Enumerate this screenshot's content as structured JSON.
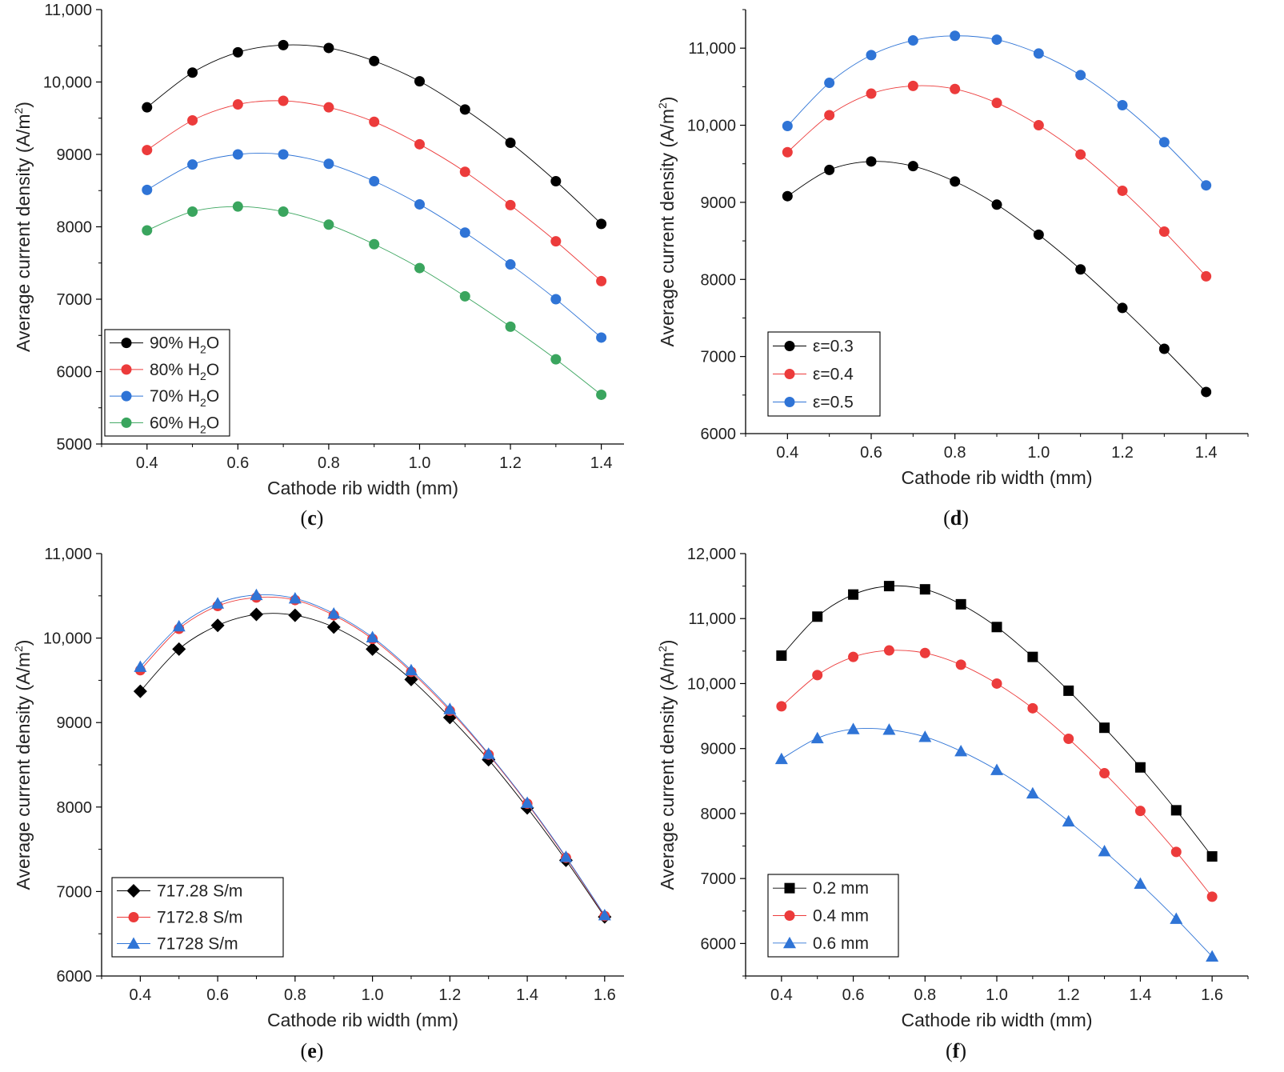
{
  "chart_data": [
    {
      "panel": "c",
      "type": "line",
      "xlabel": "Cathode rib width (mm)",
      "ylabel": "Average current density (A/m2)",
      "ylim": [
        5000,
        11000
      ],
      "yticks": [
        5000,
        6000,
        7000,
        8000,
        9000,
        10000,
        11000
      ],
      "ytick_labels": [
        "5000",
        "6000",
        "7000",
        "8000",
        "9000",
        "10,000",
        "11,000"
      ],
      "xlim": [
        0.3,
        1.45
      ],
      "xticks": [
        0.4,
        0.6,
        0.8,
        1.0,
        1.2,
        1.4
      ],
      "xtick_labels": [
        "0.4",
        "0.6",
        "0.8",
        "1.0",
        "1.2",
        "1.4"
      ],
      "x": [
        0.4,
        0.5,
        0.6,
        0.7,
        0.8,
        0.9,
        1.0,
        1.1,
        1.2,
        1.3,
        1.4
      ],
      "legend_position": "bottom-left",
      "series": [
        {
          "name": "90% H2O",
          "label_main": "90% H",
          "label_sub": "2",
          "label_tail": "O",
          "color": "#000000",
          "marker": "circle",
          "values": [
            9650,
            10130,
            10410,
            10510,
            10470,
            10290,
            10010,
            9620,
            9160,
            8630,
            8040
          ]
        },
        {
          "name": "80% H2O",
          "label_main": "80% H",
          "label_sub": "2",
          "label_tail": "O",
          "color": "#ec3b3b",
          "marker": "circle",
          "values": [
            9060,
            9470,
            9690,
            9740,
            9650,
            9450,
            9140,
            8760,
            8300,
            7800,
            7250
          ]
        },
        {
          "name": "70% H2O",
          "label_main": "70% H",
          "label_sub": "2",
          "label_tail": "O",
          "color": "#2f74d6",
          "marker": "circle",
          "values": [
            8510,
            8860,
            9000,
            9000,
            8870,
            8630,
            8310,
            7920,
            7480,
            7000,
            6470
          ]
        },
        {
          "name": "60% H2O",
          "label_main": "60% H",
          "label_sub": "2",
          "label_tail": "O",
          "color": "#3aa55e",
          "marker": "circle",
          "values": [
            7950,
            8210,
            8280,
            8210,
            8030,
            7760,
            7430,
            7040,
            6620,
            6170,
            5680
          ]
        }
      ]
    },
    {
      "panel": "d",
      "type": "line",
      "xlabel": "Cathode rib width (mm)",
      "ylabel": "Average current density (A/m2)",
      "ylim": [
        6000,
        11500
      ],
      "yticks": [
        6000,
        7000,
        8000,
        9000,
        10000,
        11000
      ],
      "ytick_labels": [
        "6000",
        "7000",
        "8000",
        "9000",
        "10,000",
        "11,000"
      ],
      "xlim": [
        0.3,
        1.5
      ],
      "xticks": [
        0.4,
        0.6,
        0.8,
        1.0,
        1.2,
        1.4
      ],
      "xtick_labels": [
        "0.4",
        "0.6",
        "0.8",
        "1.0",
        "1.2",
        "1.4"
      ],
      "x": [
        0.4,
        0.5,
        0.6,
        0.7,
        0.8,
        0.9,
        1.0,
        1.1,
        1.2,
        1.3,
        1.4
      ],
      "legend_position": "bottom-left",
      "series": [
        {
          "name": "ε=0.3",
          "label_main": "ε=0.3",
          "label_sub": "",
          "label_tail": "",
          "color": "#000000",
          "marker": "circle",
          "values": [
            9080,
            9420,
            9530,
            9470,
            9270,
            8970,
            8580,
            8130,
            7630,
            7100,
            6540
          ]
        },
        {
          "name": "ε=0.4",
          "label_main": "ε=0.4",
          "label_sub": "",
          "label_tail": "",
          "color": "#ec3b3b",
          "marker": "circle",
          "values": [
            9650,
            10130,
            10410,
            10510,
            10470,
            10290,
            10000,
            9620,
            9150,
            8620,
            8040
          ]
        },
        {
          "name": "ε=0.5",
          "label_main": "ε=0.5",
          "label_sub": "",
          "label_tail": "",
          "color": "#2f74d6",
          "marker": "circle",
          "values": [
            9990,
            10550,
            10910,
            11100,
            11160,
            11110,
            10930,
            10650,
            10260,
            9780,
            9220
          ]
        }
      ]
    },
    {
      "panel": "e",
      "type": "line",
      "xlabel": "Cathode rib width (mm)",
      "ylabel": "Average current density (A/m2)",
      "ylim": [
        6000,
        11000
      ],
      "yticks": [
        6000,
        7000,
        8000,
        9000,
        10000,
        11000
      ],
      "ytick_labels": [
        "6000",
        "7000",
        "8000",
        "9000",
        "10,000",
        "11,000"
      ],
      "xlim": [
        0.3,
        1.65
      ],
      "xticks": [
        0.4,
        0.6,
        0.8,
        1.0,
        1.2,
        1.4,
        1.6
      ],
      "xtick_labels": [
        "0.4",
        "0.6",
        "0.8",
        "1.0",
        "1.2",
        "1.4",
        "1.6"
      ],
      "x": [
        0.4,
        0.5,
        0.6,
        0.7,
        0.8,
        0.9,
        1.0,
        1.1,
        1.2,
        1.3,
        1.4,
        1.5,
        1.6
      ],
      "legend_position": "bottom-left",
      "series": [
        {
          "name": "717.28 S/m",
          "label_main": "717.28 S/m",
          "label_sub": "",
          "label_tail": "",
          "color": "#000000",
          "marker": "diamond",
          "values": [
            9370,
            9870,
            10150,
            10280,
            10270,
            10130,
            9870,
            9510,
            9060,
            8560,
            7990,
            7370,
            6700
          ]
        },
        {
          "name": "7172.8 S/m",
          "label_main": "7172.8 S/m",
          "label_sub": "",
          "label_tail": "",
          "color": "#ec3b3b",
          "marker": "circle",
          "values": [
            9620,
            10110,
            10380,
            10480,
            10450,
            10270,
            9990,
            9600,
            9140,
            8620,
            8040,
            7400,
            6710
          ]
        },
        {
          "name": "71728 S/m",
          "label_main": "71728 S/m",
          "label_sub": "",
          "label_tail": "",
          "color": "#2f74d6",
          "marker": "triangle",
          "values": [
            9660,
            10140,
            10410,
            10510,
            10470,
            10290,
            10010,
            9620,
            9160,
            8630,
            8050,
            7410,
            6720
          ]
        }
      ]
    },
    {
      "panel": "f",
      "type": "line",
      "xlabel": "Cathode rib width (mm)",
      "ylabel": "Average current density (A/m2)",
      "ylim": [
        5500,
        12000
      ],
      "yticks": [
        6000,
        7000,
        8000,
        9000,
        10000,
        11000,
        12000
      ],
      "ytick_labels": [
        "6000",
        "7000",
        "8000",
        "9000",
        "10,000",
        "11,000",
        "12,000"
      ],
      "xlim": [
        0.3,
        1.7
      ],
      "xticks": [
        0.4,
        0.6,
        0.8,
        1.0,
        1.2,
        1.4,
        1.6
      ],
      "xtick_labels": [
        "0.4",
        "0.6",
        "0.8",
        "1.0",
        "1.2",
        "1.4",
        "1.6"
      ],
      "x": [
        0.4,
        0.5,
        0.6,
        0.7,
        0.8,
        0.9,
        1.0,
        1.1,
        1.2,
        1.3,
        1.4,
        1.5,
        1.6
      ],
      "legend_position": "bottom-left",
      "series": [
        {
          "name": "0.2 mm",
          "label_main": "0.2 mm",
          "label_sub": "",
          "label_tail": "",
          "color": "#000000",
          "marker": "square",
          "values": [
            10430,
            11030,
            11370,
            11500,
            11450,
            11220,
            10870,
            10410,
            9890,
            9320,
            8710,
            8050,
            7340
          ]
        },
        {
          "name": "0.4 mm",
          "label_main": "0.4 mm",
          "label_sub": "",
          "label_tail": "",
          "color": "#ec3b3b",
          "marker": "circle",
          "values": [
            9650,
            10130,
            10410,
            10510,
            10470,
            10290,
            10000,
            9620,
            9150,
            8620,
            8040,
            7410,
            6720
          ]
        },
        {
          "name": "0.6 mm",
          "label_main": "0.6 mm",
          "label_sub": "",
          "label_tail": "",
          "color": "#2f74d6",
          "marker": "triangle",
          "values": [
            8840,
            9160,
            9300,
            9290,
            9180,
            8960,
            8670,
            8310,
            7880,
            7420,
            6920,
            6380,
            5800
          ]
        }
      ]
    }
  ],
  "panel_labels": [
    "(c)",
    "(d)",
    "(e)",
    "(f)"
  ]
}
